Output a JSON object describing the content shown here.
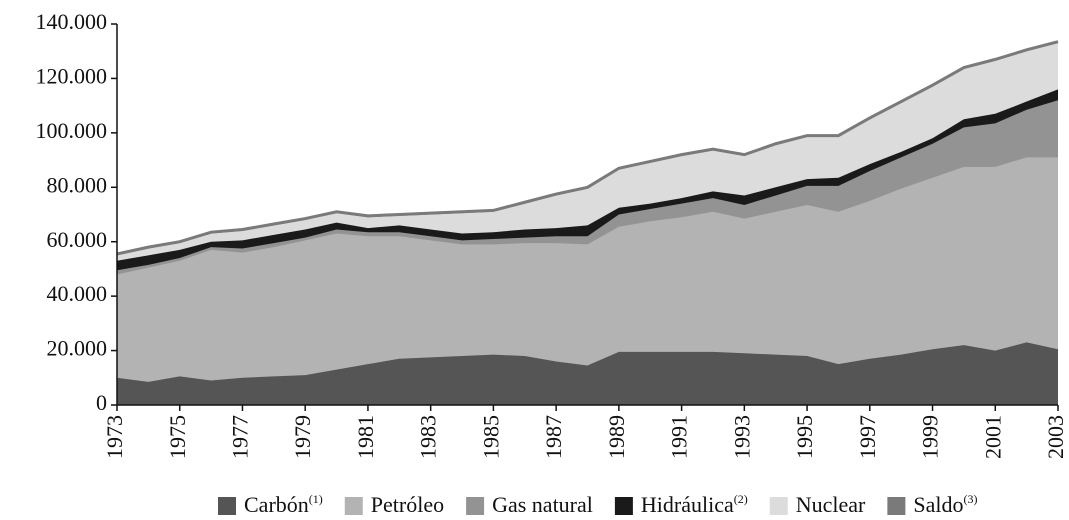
{
  "chart_data": {
    "type": "stacked_area",
    "x": [
      1973,
      1974,
      1975,
      1976,
      1977,
      1978,
      1979,
      1980,
      1981,
      1982,
      1983,
      1984,
      1985,
      1986,
      1987,
      1988,
      1989,
      1990,
      1991,
      1992,
      1993,
      1994,
      1995,
      1996,
      1997,
      1998,
      1999,
      2000,
      2001,
      2002,
      2003
    ],
    "series": [
      {
        "name": "Carbón",
        "name_sup": "(1)",
        "color": "#555555",
        "values": [
          10000,
          8500,
          10500,
          9000,
          10000,
          10500,
          11000,
          13000,
          15000,
          17000,
          17500,
          18000,
          18500,
          18000,
          16000,
          14500,
          19500,
          19500,
          19500,
          19500,
          19000,
          18500,
          18000,
          15000,
          17000,
          18500,
          20500,
          22000,
          20000,
          23000,
          20500
        ]
      },
      {
        "name": "Petróleo",
        "color": "#b3b3b3",
        "values": [
          38000,
          42000,
          42500,
          48000,
          46000,
          47500,
          49500,
          50000,
          47000,
          45000,
          43000,
          41000,
          40500,
          41500,
          43500,
          44500,
          46000,
          48000,
          49500,
          51500,
          49500,
          52500,
          55500,
          56000,
          58000,
          61000,
          63000,
          65500,
          67500,
          68000,
          70500
        ]
      },
      {
        "name": "Gas natural",
        "color": "#939393",
        "values": [
          1500,
          1000,
          1000,
          1000,
          1500,
          1500,
          1000,
          1500,
          1500,
          1500,
          1500,
          1500,
          2000,
          2000,
          2500,
          3000,
          4500,
          4500,
          5000,
          5000,
          5000,
          6000,
          7000,
          9500,
          11000,
          11500,
          12500,
          14500,
          16000,
          17500,
          21000
        ]
      },
      {
        "name": "Hidráulica",
        "name_sup": "(2)",
        "color": "#1a1a1a",
        "values": [
          3500,
          3500,
          3000,
          2000,
          3000,
          3000,
          3000,
          2500,
          1500,
          2500,
          2500,
          2500,
          2500,
          3000,
          3000,
          4000,
          2500,
          2000,
          2000,
          2500,
          3500,
          3000,
          2500,
          3000,
          2500,
          2000,
          2000,
          3000,
          3500,
          3000,
          4000
        ]
      },
      {
        "name": "Nuclear",
        "color": "#dcdcdc",
        "values": [
          2000,
          2500,
          2500,
          3000,
          3500,
          3500,
          3500,
          3500,
          4000,
          3500,
          5500,
          7500,
          7500,
          9500,
          12000,
          13500,
          14000,
          15000,
          15500,
          15000,
          14500,
          15500,
          15500,
          15000,
          16500,
          18000,
          19000,
          18500,
          19500,
          18500,
          17000
        ]
      },
      {
        "name": "Saldo",
        "name_sup": "(3)",
        "color": "#7a7a7a",
        "values": [
          500,
          500,
          500,
          500,
          500,
          500,
          500,
          500,
          500,
          500,
          500,
          500,
          500,
          500,
          500,
          500,
          500,
          500,
          500,
          500,
          500,
          500,
          500,
          500,
          500,
          500,
          500,
          500,
          500,
          500,
          500
        ]
      }
    ],
    "xlim": [
      1973,
      2003
    ],
    "xticks": [
      1973,
      1975,
      1977,
      1979,
      1981,
      1983,
      1985,
      1987,
      1989,
      1991,
      1993,
      1995,
      1997,
      1999,
      2001,
      2003
    ],
    "ylim": [
      0,
      140000
    ],
    "yticks": [
      0,
      {
        "value": 20000,
        "label": "20.000"
      },
      {
        "value": 40000,
        "label": "40.000"
      },
      {
        "value": 60000,
        "label": "60.000"
      },
      {
        "value": 80000,
        "label": "80.000"
      },
      {
        "value": 100000,
        "label": "100.000"
      },
      {
        "value": 120000,
        "label": "120.000"
      },
      {
        "value": 140000,
        "label": "140.000"
      }
    ]
  }
}
